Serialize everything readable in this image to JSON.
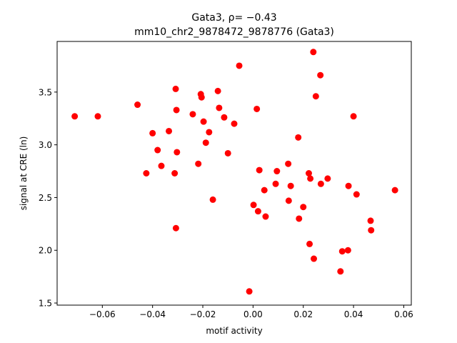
{
  "chart_data": {
    "type": "scatter",
    "title": "Gata3, ρ= −0.43",
    "subtitle": "mm10_chr2_9878472_9878776 (Gata3)",
    "xlabel": "motif activity",
    "ylabel": "signal at CRE (ln)",
    "xlim": [
      -0.078,
      0.063
    ],
    "ylim": [
      1.48,
      3.98
    ],
    "xticks": [
      -0.06,
      -0.04,
      -0.02,
      0.0,
      0.02,
      0.04,
      0.06
    ],
    "xtick_labels": [
      "−0.06",
      "−0.04",
      "−0.02",
      "0.00",
      "0.02",
      "0.04",
      "0.06"
    ],
    "yticks": [
      1.5,
      2.0,
      2.5,
      3.0,
      3.5
    ],
    "ytick_labels": [
      "1.5",
      "2.0",
      "2.5",
      "3.0",
      "3.5"
    ],
    "grid": false,
    "marker_color": "#ff0000",
    "points": [
      {
        "x": -0.071,
        "y": 3.27
      },
      {
        "x": -0.0618,
        "y": 3.27
      },
      {
        "x": -0.046,
        "y": 3.38
      },
      {
        "x": -0.0425,
        "y": 2.73
      },
      {
        "x": -0.04,
        "y": 3.11
      },
      {
        "x": -0.038,
        "y": 2.95
      },
      {
        "x": -0.0365,
        "y": 2.8
      },
      {
        "x": -0.0335,
        "y": 3.13
      },
      {
        "x": -0.0312,
        "y": 2.73
      },
      {
        "x": -0.0308,
        "y": 3.53
      },
      {
        "x": -0.0305,
        "y": 3.33
      },
      {
        "x": -0.0303,
        "y": 2.93
      },
      {
        "x": -0.0307,
        "y": 2.21
      },
      {
        "x": -0.024,
        "y": 3.29
      },
      {
        "x": -0.0218,
        "y": 2.82
      },
      {
        "x": -0.0208,
        "y": 3.48
      },
      {
        "x": -0.0205,
        "y": 3.45
      },
      {
        "x": -0.0197,
        "y": 3.22
      },
      {
        "x": -0.0188,
        "y": 3.02
      },
      {
        "x": -0.0175,
        "y": 3.12
      },
      {
        "x": -0.016,
        "y": 2.48
      },
      {
        "x": -0.014,
        "y": 3.51
      },
      {
        "x": -0.0135,
        "y": 3.35
      },
      {
        "x": -0.0115,
        "y": 3.26
      },
      {
        "x": -0.01,
        "y": 2.92
      },
      {
        "x": -0.0075,
        "y": 3.2
      },
      {
        "x": -0.0055,
        "y": 3.75
      },
      {
        "x": -0.0015,
        "y": 1.61
      },
      {
        "x": 0.0002,
        "y": 2.43
      },
      {
        "x": 0.0015,
        "y": 3.34
      },
      {
        "x": 0.002,
        "y": 2.37
      },
      {
        "x": 0.0025,
        "y": 2.76
      },
      {
        "x": 0.0045,
        "y": 2.57
      },
      {
        "x": 0.005,
        "y": 2.32
      },
      {
        "x": 0.009,
        "y": 2.63
      },
      {
        "x": 0.0095,
        "y": 2.75
      },
      {
        "x": 0.014,
        "y": 2.82
      },
      {
        "x": 0.0142,
        "y": 2.47
      },
      {
        "x": 0.015,
        "y": 2.61
      },
      {
        "x": 0.018,
        "y": 3.07
      },
      {
        "x": 0.0183,
        "y": 2.3
      },
      {
        "x": 0.02,
        "y": 2.41
      },
      {
        "x": 0.0222,
        "y": 2.73
      },
      {
        "x": 0.0228,
        "y": 2.68
      },
      {
        "x": 0.0225,
        "y": 2.06
      },
      {
        "x": 0.024,
        "y": 3.88
      },
      {
        "x": 0.0242,
        "y": 1.92
      },
      {
        "x": 0.025,
        "y": 3.46
      },
      {
        "x": 0.0268,
        "y": 3.66
      },
      {
        "x": 0.027,
        "y": 2.63
      },
      {
        "x": 0.0297,
        "y": 2.68
      },
      {
        "x": 0.0348,
        "y": 1.8
      },
      {
        "x": 0.0355,
        "y": 1.99
      },
      {
        "x": 0.0378,
        "y": 2.0
      },
      {
        "x": 0.038,
        "y": 2.61
      },
      {
        "x": 0.04,
        "y": 3.27
      },
      {
        "x": 0.0412,
        "y": 2.53
      },
      {
        "x": 0.0468,
        "y": 2.28
      },
      {
        "x": 0.047,
        "y": 2.19
      },
      {
        "x": 0.0565,
        "y": 2.57
      }
    ]
  }
}
